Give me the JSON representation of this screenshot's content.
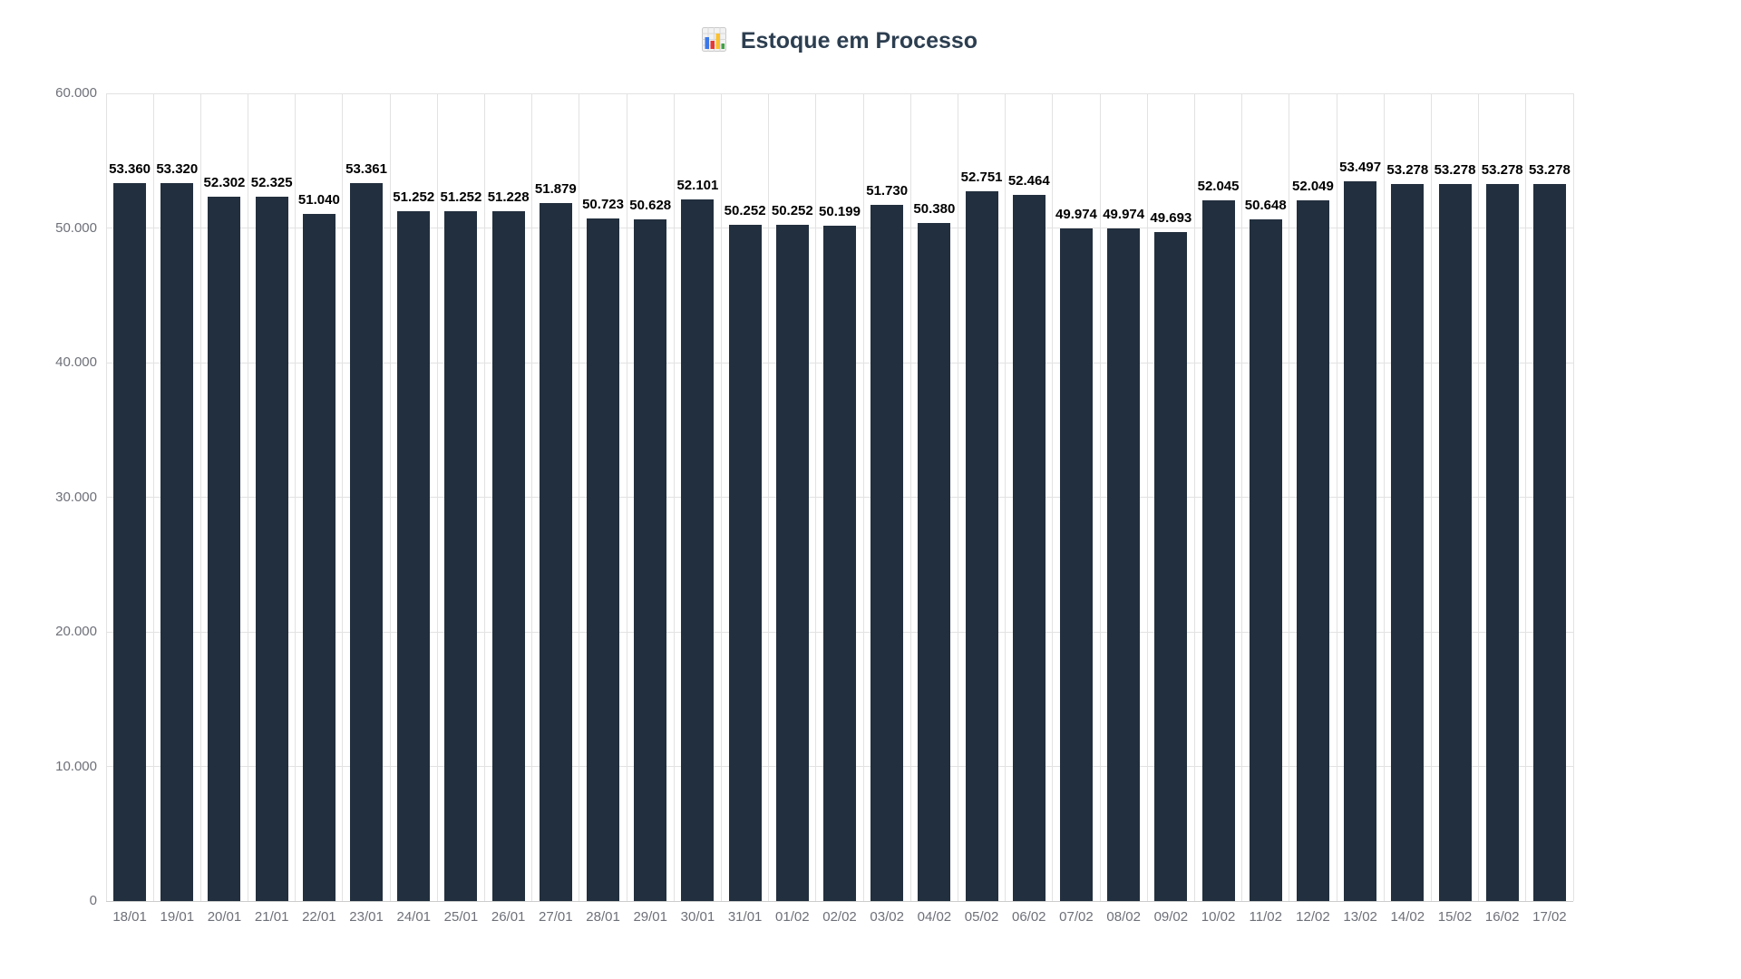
{
  "title": {
    "icon": "bar-chart-emoji",
    "text": "Estoque em Processo"
  },
  "colors": {
    "bar": "#222f3e",
    "title": "#2c3e50",
    "value_label": "#000000",
    "axis_label": "#6e7079",
    "gridline": "#e2e2e2",
    "axis_line": "#cccccc"
  },
  "chart_data": {
    "type": "bar",
    "title": "Estoque em Processo",
    "xlabel": "",
    "ylabel": "",
    "legend": "none",
    "grid": true,
    "ylim": [
      0,
      60000
    ],
    "y_ticks": {
      "values": [
        0,
        10000,
        20000,
        30000,
        40000,
        50000,
        60000
      ],
      "labels": [
        "0",
        "10.000",
        "20.000",
        "30.000",
        "40.000",
        "50.000",
        "60.000"
      ]
    },
    "categories": [
      "18/01",
      "19/01",
      "20/01",
      "21/01",
      "22/01",
      "23/01",
      "24/01",
      "25/01",
      "26/01",
      "27/01",
      "28/01",
      "29/01",
      "30/01",
      "31/01",
      "01/02",
      "02/02",
      "03/02",
      "04/02",
      "05/02",
      "06/02",
      "07/02",
      "08/02",
      "09/02",
      "10/02",
      "11/02",
      "12/02",
      "13/02",
      "14/02",
      "15/02",
      "16/02",
      "17/02"
    ],
    "values": [
      53360,
      53320,
      52302,
      52325,
      51040,
      53361,
      51252,
      51252,
      51228,
      51879,
      50723,
      50628,
      52101,
      50252,
      50252,
      50199,
      51730,
      50380,
      52751,
      52464,
      49974,
      49974,
      49693,
      52045,
      50648,
      52049,
      53497,
      53278,
      53278,
      53278,
      53278
    ],
    "value_labels": [
      "53.360",
      "53.320",
      "52.302",
      "52.325",
      "51.040",
      "53.361",
      "51.252",
      "51.252",
      "51.228",
      "51.879",
      "50.723",
      "50.628",
      "52.101",
      "50.252",
      "50.252",
      "50.199",
      "51.730",
      "50.380",
      "52.751",
      "52.464",
      "49.974",
      "49.974",
      "49.693",
      "52.045",
      "50.648",
      "52.049",
      "53.497",
      "53.278",
      "53.278",
      "53.278",
      "53.278"
    ]
  }
}
